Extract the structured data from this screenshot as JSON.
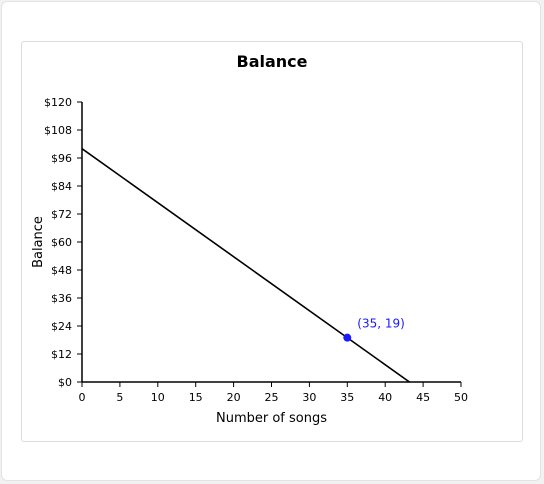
{
  "chart_data": {
    "type": "line",
    "title": "Balance",
    "xlabel": "Number of songs",
    "ylabel": "Balance",
    "xlim": [
      0,
      50
    ],
    "ylim": [
      0,
      120
    ],
    "x_ticks": [
      0,
      5,
      10,
      15,
      20,
      25,
      30,
      35,
      40,
      45,
      50
    ],
    "y_ticks": [
      0,
      12,
      24,
      36,
      48,
      60,
      72,
      84,
      96,
      108,
      120
    ],
    "y_tick_labels": [
      "$0",
      "$12",
      "$24",
      "$36",
      "$48",
      "$60",
      "$72",
      "$84",
      "$96",
      "$108",
      "$120"
    ],
    "grid": false,
    "series": [
      {
        "x": [
          0,
          43.2
        ],
        "y": [
          100,
          0
        ],
        "color": "#000000"
      }
    ],
    "highlight_point": {
      "x": 35,
      "y": 19,
      "label": "(35, 19)",
      "color": "#1a1aff"
    }
  }
}
